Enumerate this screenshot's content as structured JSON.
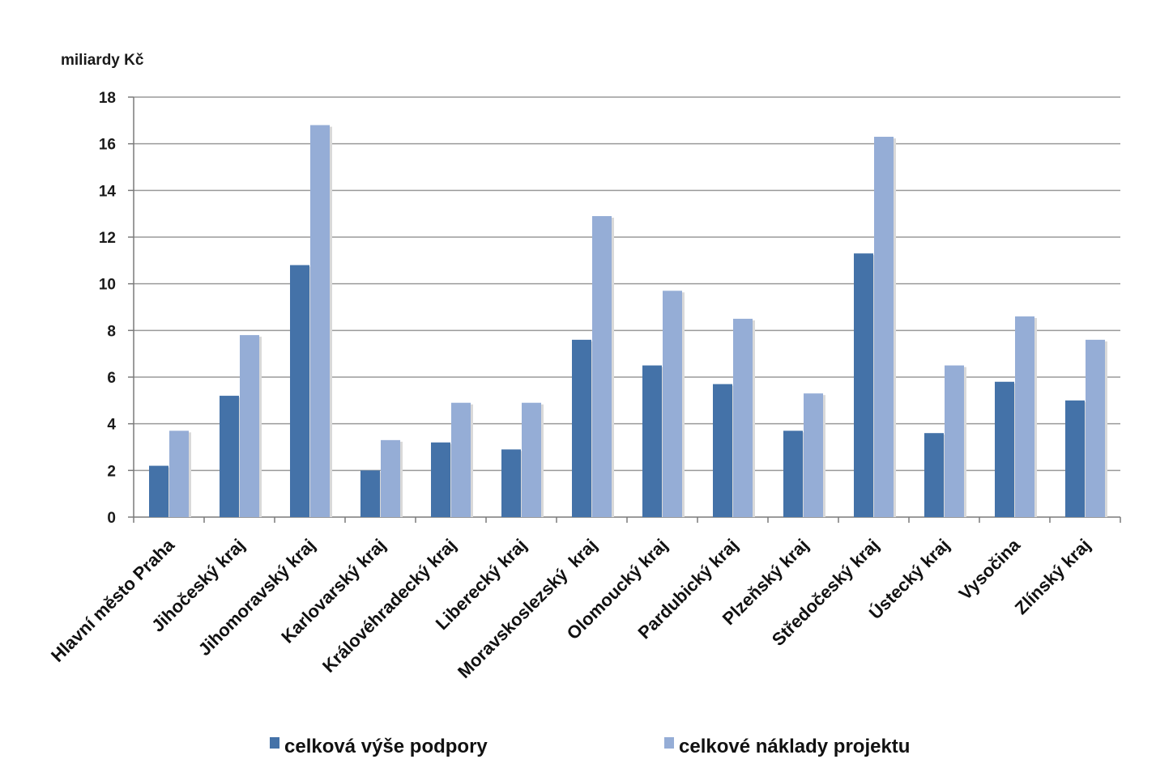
{
  "chart_data": {
    "type": "bar",
    "ylabel": "miliardy Kč",
    "ylim": [
      0,
      18
    ],
    "yticks": [
      0,
      2,
      4,
      6,
      8,
      10,
      12,
      14,
      16,
      18
    ],
    "grid": true,
    "legend_position": "bottom",
    "categories": [
      "Hlavní město Praha",
      "Jihočeský kraj",
      "Jihomoravský kraj",
      "Karlovarský kraj",
      "Královéhradecký kraj",
      "Liberecký kraj",
      "Moravskoslezský  kraj",
      "Olomoucký kraj",
      "Pardubický kraj",
      "Plzeňský kraj",
      "Středočeský kraj",
      "Ústecký kraj",
      "Vysočina",
      "Zlínský kraj"
    ],
    "series": [
      {
        "name": "celková výše podpory",
        "color": "#4472a8",
        "values": [
          2.2,
          5.2,
          10.8,
          2.0,
          3.2,
          2.9,
          7.6,
          6.5,
          5.7,
          3.7,
          11.3,
          3.6,
          5.8,
          5.0
        ]
      },
      {
        "name": "celkové náklady projektu",
        "color": "#95add6",
        "values": [
          3.7,
          7.8,
          16.8,
          3.3,
          4.9,
          4.9,
          12.9,
          9.7,
          8.5,
          5.3,
          16.3,
          6.5,
          8.6,
          7.6
        ]
      }
    ]
  }
}
